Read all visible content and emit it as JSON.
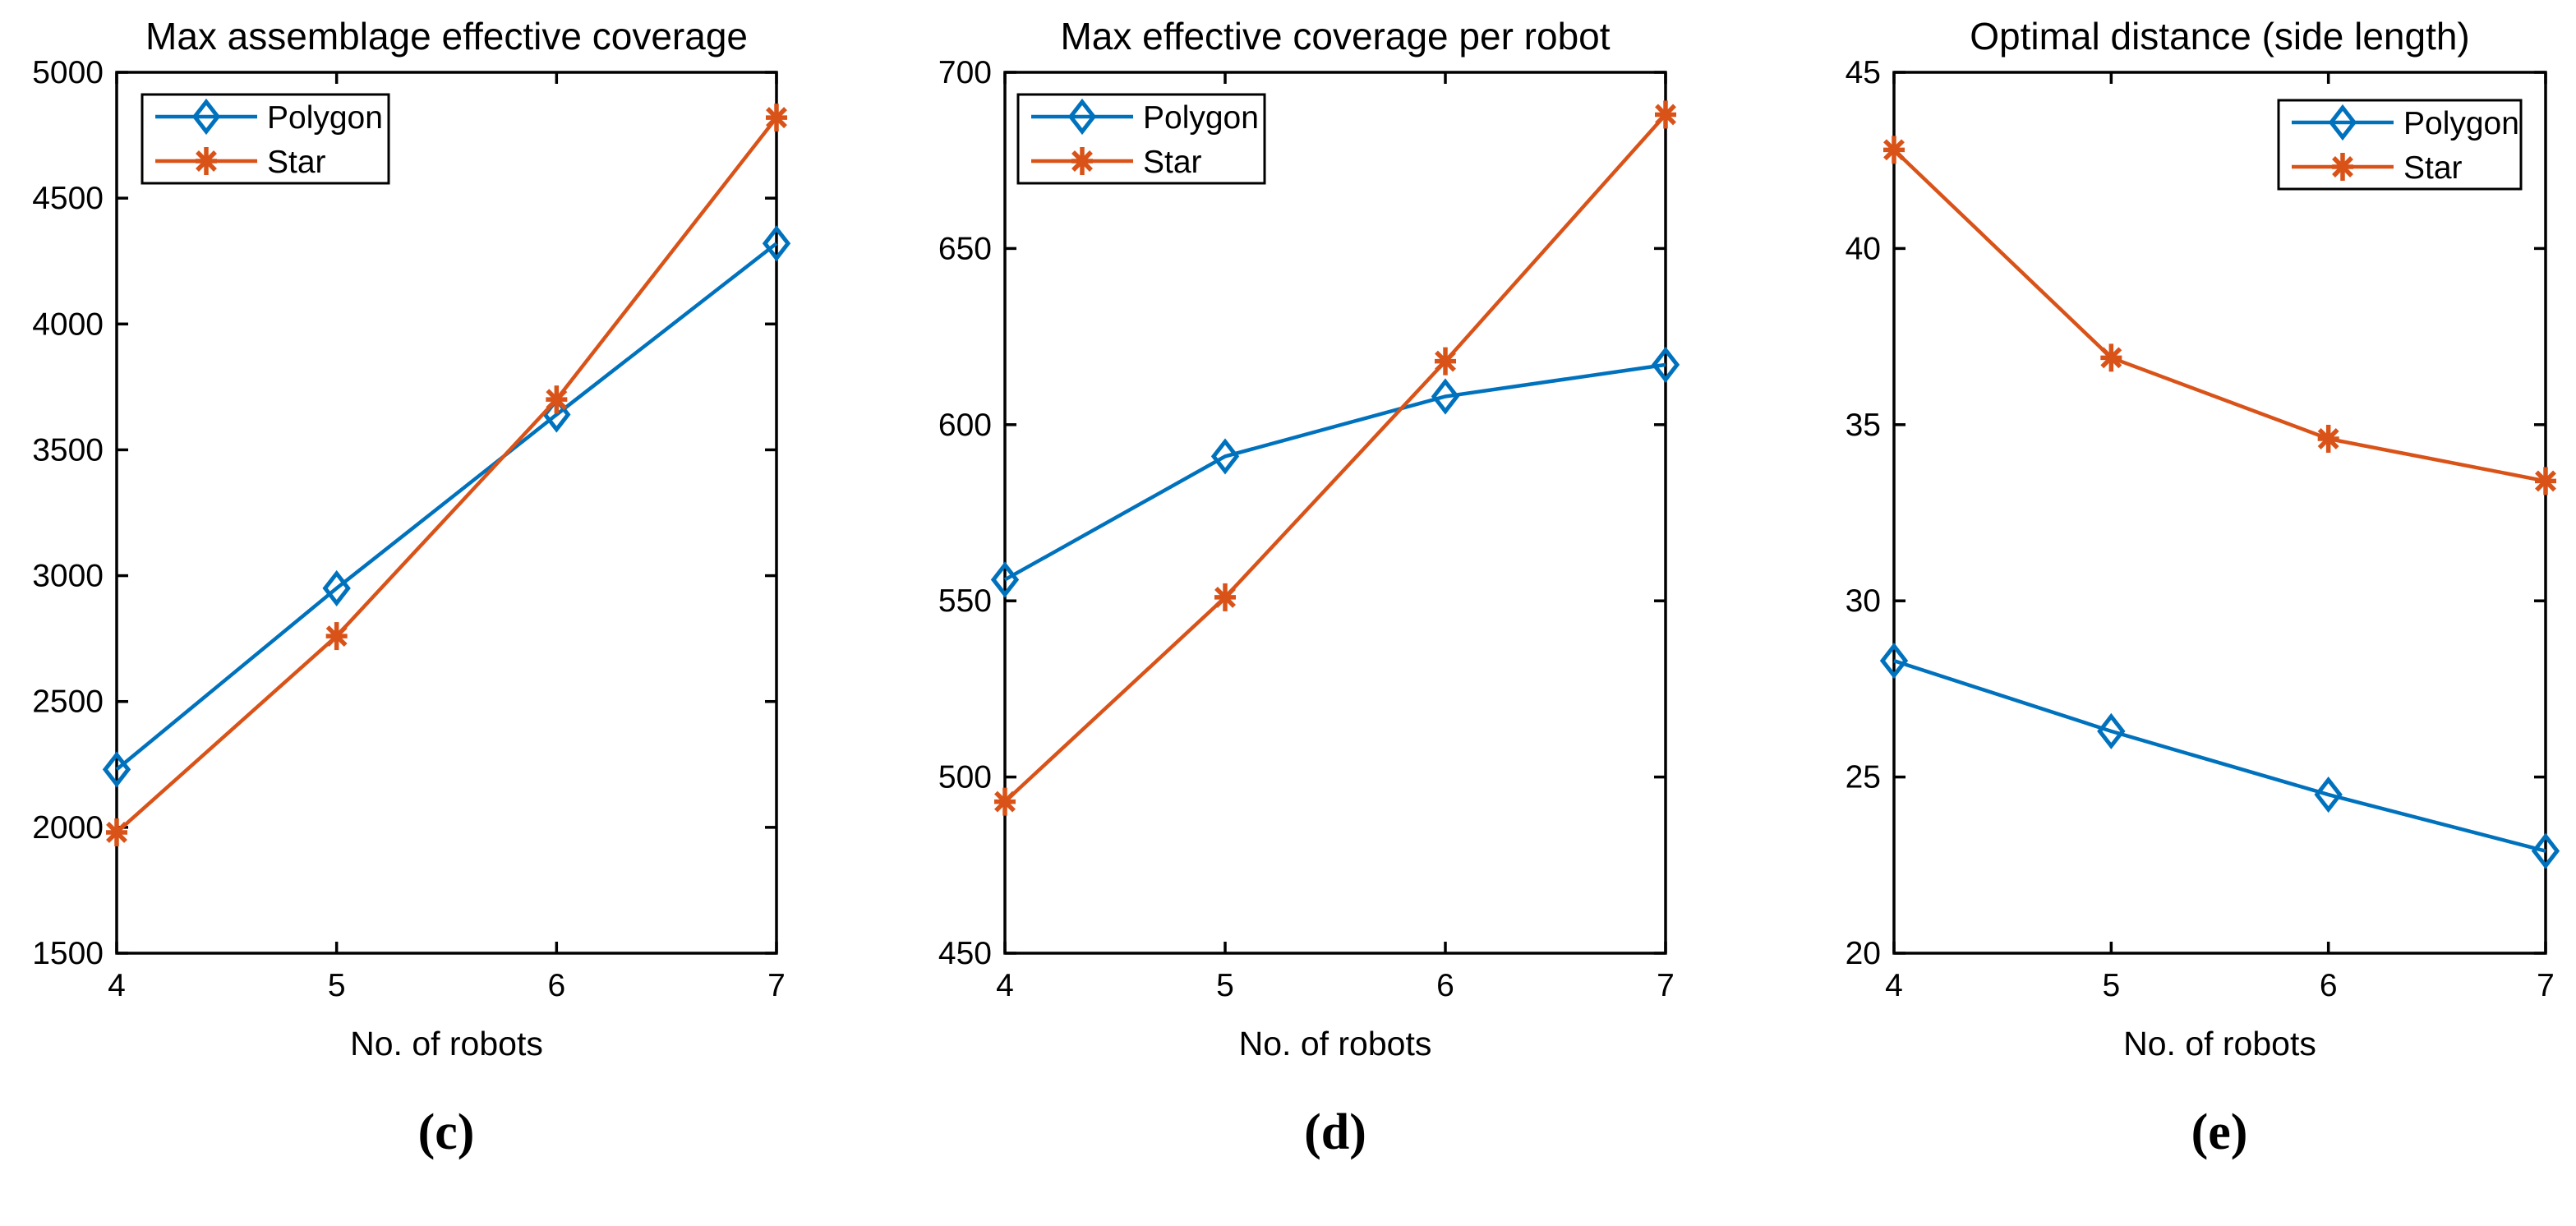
{
  "figure": {
    "background": "#ffffff",
    "axis_color": "#000000",
    "text_color": "#000000"
  },
  "chart_data": [
    {
      "type": "line",
      "title": "Max assemblage effective coverage",
      "xlabel": "No. of robots",
      "ylabel": "",
      "caption": "(c)",
      "x": [
        4,
        5,
        6,
        7
      ],
      "xlim": [
        4,
        7
      ],
      "ylim": [
        1500,
        5000
      ],
      "xticks": [
        4,
        5,
        6,
        7
      ],
      "yticks": [
        1500,
        2000,
        2500,
        3000,
        3500,
        4000,
        4500,
        5000
      ],
      "grid": false,
      "legend_position": "top-left",
      "series": [
        {
          "name": "Polygon",
          "color": "#0072BD",
          "marker": "diamond",
          "values": [
            2230,
            2950,
            3640,
            4320
          ]
        },
        {
          "name": "Star",
          "color": "#D95319",
          "marker": "asterisk",
          "values": [
            1980,
            2760,
            3700,
            4820
          ]
        }
      ]
    },
    {
      "type": "line",
      "title": "Max effective coverage per robot",
      "xlabel": "No. of robots",
      "ylabel": "",
      "caption": "(d)",
      "x": [
        4,
        5,
        6,
        7
      ],
      "xlim": [
        4,
        7
      ],
      "ylim": [
        450,
        700
      ],
      "xticks": [
        4,
        5,
        6,
        7
      ],
      "yticks": [
        450,
        500,
        550,
        600,
        650,
        700
      ],
      "grid": false,
      "legend_position": "top-left",
      "series": [
        {
          "name": "Polygon",
          "color": "#0072BD",
          "marker": "diamond",
          "values": [
            556,
            591,
            608,
            617
          ]
        },
        {
          "name": "Star",
          "color": "#D95319",
          "marker": "asterisk",
          "values": [
            493,
            551,
            618,
            688
          ]
        }
      ]
    },
    {
      "type": "line",
      "title": "Optimal distance (side length)",
      "xlabel": "No. of robots",
      "ylabel": "",
      "caption": "(e)",
      "x": [
        4,
        5,
        6,
        7
      ],
      "xlim": [
        4,
        7
      ],
      "ylim": [
        20,
        45
      ],
      "xticks": [
        4,
        5,
        6,
        7
      ],
      "yticks": [
        20,
        25,
        30,
        35,
        40,
        45
      ],
      "grid": false,
      "legend_position": "top-right",
      "series": [
        {
          "name": "Polygon",
          "color": "#0072BD",
          "marker": "diamond",
          "values": [
            28.3,
            26.3,
            24.5,
            22.9
          ]
        },
        {
          "name": "Star",
          "color": "#D95319",
          "marker": "asterisk",
          "values": [
            42.8,
            36.9,
            34.6,
            33.4
          ]
        }
      ]
    }
  ]
}
